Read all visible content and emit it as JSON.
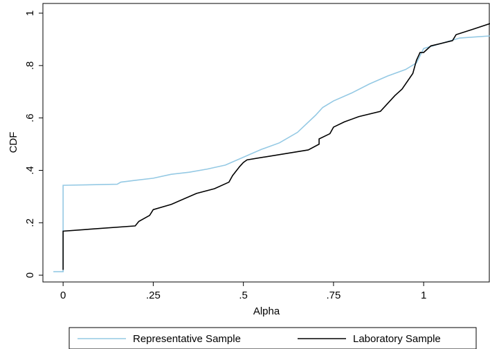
{
  "chart_data": {
    "type": "line",
    "x_label": "Alpha",
    "y_label": "CDF",
    "xlim": [
      -0.056,
      1.184
    ],
    "ylim": [
      -0.026,
      1.037
    ],
    "xticks": [
      0,
      {
        "value": 0.25,
        "label": ".25"
      },
      {
        "value": 0.5,
        "label": ".5"
      },
      {
        "value": 0.75,
        "label": ".75"
      },
      1
    ],
    "yticks": [
      0,
      {
        "value": 0.2,
        "label": ".2"
      },
      {
        "value": 0.4,
        "label": ".4"
      },
      {
        "value": 0.6,
        "label": ".6"
      },
      {
        "value": 0.8,
        "label": ".8"
      },
      1
    ],
    "legend": "bottom",
    "series": [
      {
        "name": "Representative Sample",
        "color": "#94c9e4",
        "x": [
          -0.027,
          0,
          0,
          0.15,
          0.16,
          0.2,
          0.25,
          0.3,
          0.35,
          0.4,
          0.45,
          0.5,
          0.55,
          0.6,
          0.65,
          0.7,
          0.72,
          0.75,
          0.8,
          0.85,
          0.9,
          0.95,
          0.98,
          1.0,
          1.05,
          1.1,
          1.15,
          1.184
        ],
        "values": [
          0.013,
          0.013,
          0.343,
          0.347,
          0.355,
          0.362,
          0.37,
          0.385,
          0.393,
          0.405,
          0.42,
          0.45,
          0.48,
          0.505,
          0.545,
          0.61,
          0.64,
          0.665,
          0.695,
          0.73,
          0.76,
          0.785,
          0.81,
          0.865,
          0.885,
          0.905,
          0.91,
          0.913
        ]
      },
      {
        "name": "Laboratory Sample",
        "color": "#000000",
        "x": [
          0,
          0,
          0.2,
          0.21,
          0.24,
          0.25,
          0.3,
          0.37,
          0.42,
          0.46,
          0.47,
          0.49,
          0.5,
          0.51,
          0.68,
          0.71,
          0.71,
          0.74,
          0.75,
          0.78,
          0.82,
          0.88,
          0.9,
          0.92,
          0.94,
          0.97,
          0.98,
          0.99,
          1.0,
          1.02,
          1.08,
          1.09,
          1.14,
          1.184
        ],
        "values": [
          0.02,
          0.168,
          0.188,
          0.205,
          0.228,
          0.25,
          0.27,
          0.312,
          0.33,
          0.355,
          0.38,
          0.415,
          0.43,
          0.44,
          0.478,
          0.5,
          0.52,
          0.54,
          0.565,
          0.585,
          0.605,
          0.625,
          0.655,
          0.685,
          0.71,
          0.77,
          0.82,
          0.85,
          0.85,
          0.875,
          0.895,
          0.918,
          0.94,
          0.96
        ]
      }
    ]
  }
}
